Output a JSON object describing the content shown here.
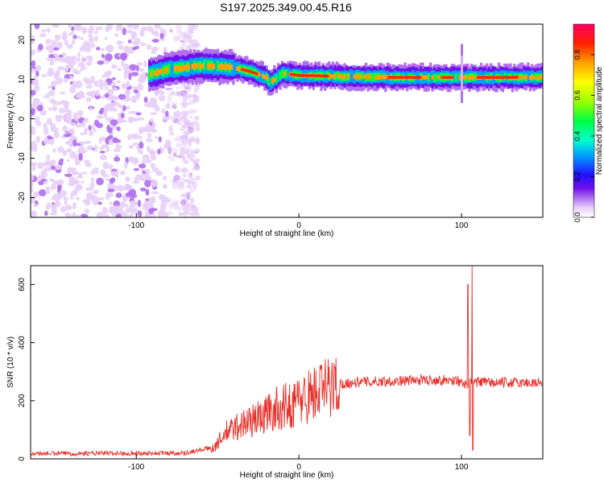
{
  "title": "S197.2025.349.00.45.R16",
  "chart_data": [
    {
      "type": "heatmap",
      "xlabel": "Height of straight line (km)",
      "ylabel": "Frequency (Hz)",
      "xlim": [
        -165,
        150
      ],
      "ylim": [
        -25,
        24
      ],
      "xticks": [
        -100,
        0,
        100
      ],
      "xtick_labels": [
        "-100",
        "0",
        "100"
      ],
      "yticks": [
        20,
        10,
        0,
        -10,
        -20
      ],
      "ytick_labels": [
        "20",
        "10",
        "0",
        "-10",
        "-20"
      ],
      "colorbar": {
        "label": "Normalized spectral amplitude",
        "range": [
          0,
          0.95
        ],
        "ticks": [
          0.0,
          0.2,
          0.4,
          0.6,
          0.8
        ],
        "tick_labels": [
          "0.0",
          "0.2",
          "0.4",
          "0.6",
          "0.8"
        ],
        "colors": [
          "#ffffff",
          "#e8d0f8",
          "#b070f0",
          "#7010e8",
          "#2010ff",
          "#00a0ff",
          "#00ffcc",
          "#00ff40",
          "#a0ff00",
          "#ffff00",
          "#ffa000",
          "#ff2000",
          "#ff0060"
        ]
      },
      "signal_band": {
        "description_points": [
          {
            "x": -90,
            "y": 11.5
          },
          {
            "x": -80,
            "y": 12.5
          },
          {
            "x": -60,
            "y": 13.5
          },
          {
            "x": -40,
            "y": 13.0
          },
          {
            "x": -30,
            "y": 12.0
          },
          {
            "x": -20,
            "y": 10.5
          },
          {
            "x": -18,
            "y": 9.0
          },
          {
            "x": -10,
            "y": 11.5
          },
          {
            "x": 0,
            "y": 11.0
          },
          {
            "x": 20,
            "y": 10.8
          },
          {
            "x": 60,
            "y": 10.5
          },
          {
            "x": 95,
            "y": 10.5
          },
          {
            "x": 100,
            "y": 10.5
          },
          {
            "x": 150,
            "y": 10.5
          }
        ],
        "noise_region_x": [
          -165,
          -62
        ]
      }
    },
    {
      "type": "line",
      "xlabel": "Height of straight line (km)",
      "ylabel": "SNR (10 * v/v)",
      "xlim": [
        -165,
        150
      ],
      "ylim": [
        0,
        665
      ],
      "xticks": [
        -100,
        0,
        100
      ],
      "xtick_labels": [
        "-100",
        "0",
        "100"
      ],
      "yticks": [
        0,
        200,
        400,
        600
      ],
      "ytick_labels": [
        "0",
        "200",
        "400",
        "600"
      ],
      "color": "#e8302a",
      "envelope": [
        {
          "x": -165,
          "y": 18
        },
        {
          "x": -70,
          "y": 20
        },
        {
          "x": -52,
          "y": 40
        },
        {
          "x": -45,
          "y": 90
        },
        {
          "x": -35,
          "y": 120
        },
        {
          "x": -25,
          "y": 140
        },
        {
          "x": -15,
          "y": 170
        },
        {
          "x": -5,
          "y": 185
        },
        {
          "x": 5,
          "y": 215
        },
        {
          "x": 15,
          "y": 240
        },
        {
          "x": 25,
          "y": 258
        },
        {
          "x": 40,
          "y": 265
        },
        {
          "x": 60,
          "y": 268
        },
        {
          "x": 80,
          "y": 272
        },
        {
          "x": 98,
          "y": 270
        },
        {
          "x": 102,
          "y": 250
        },
        {
          "x": 106,
          "y": 265
        },
        {
          "x": 120,
          "y": 262
        },
        {
          "x": 150,
          "y": 262
        }
      ],
      "spikes": [
        {
          "x": 104,
          "y": 600
        },
        {
          "x": 105,
          "y": 80
        },
        {
          "x": 106.5,
          "y": 665
        },
        {
          "x": 107,
          "y": 30
        }
      ]
    }
  ]
}
